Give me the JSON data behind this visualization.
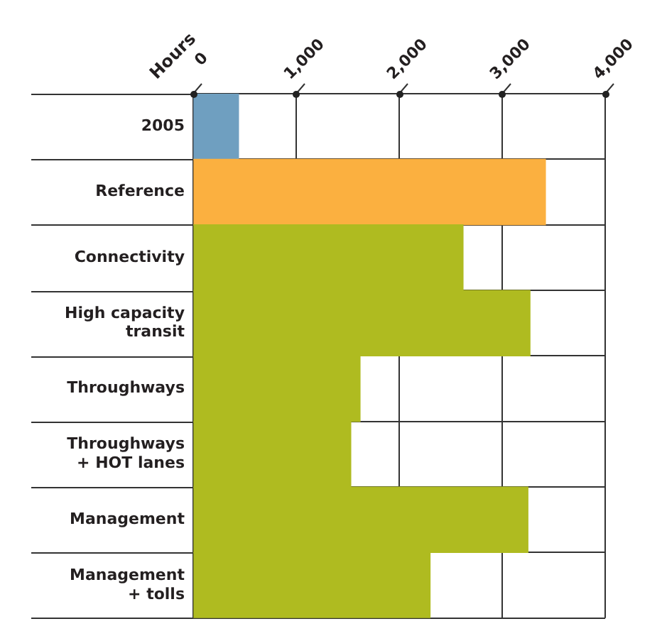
{
  "chart_data": {
    "type": "bar",
    "orientation": "horizontal",
    "xlabel": "Hours",
    "categories": [
      "2005",
      "Reference",
      "Connectivity",
      "High capacity transit",
      "Throughways",
      "Throughways + HOT lanes",
      "Management",
      "Management + tolls"
    ],
    "values": [
      440,
      3420,
      2620,
      3270,
      1620,
      1530,
      3250,
      2300
    ],
    "colors": [
      "#6f9fc0",
      "#fbb040",
      "#afbb20",
      "#afbb20",
      "#afbb20",
      "#afbb20",
      "#afbb20",
      "#afbb20"
    ],
    "xlim": [
      0,
      4000
    ],
    "xticks": [
      0,
      {
        "value": 1000,
        "label": "1,000"
      },
      {
        "value": 2000,
        "label": "2,000"
      },
      {
        "value": 3000,
        "label": "3,000"
      },
      {
        "value": 4000,
        "label": "4,000"
      }
    ],
    "grid": true,
    "legend": false
  }
}
